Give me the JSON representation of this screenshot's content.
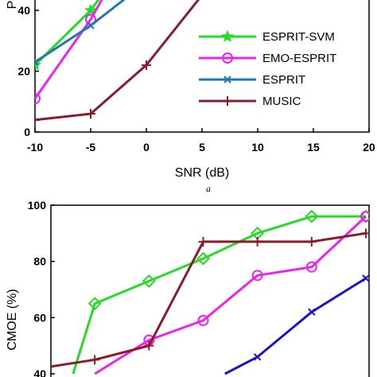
{
  "chart_data": [
    {
      "type": "line",
      "panel_label": "a",
      "xlabel": "SNR (dB)",
      "ylabel": "P",
      "xlim": [
        -10,
        20
      ],
      "ylim": [
        0,
        50
      ],
      "x_ticks": [
        "-10",
        "-5",
        "0",
        "5",
        "10",
        "15",
        "20"
      ],
      "y_ticks": [
        "0",
        "20",
        "40"
      ],
      "legend_position": "bottom-right",
      "series": [
        {
          "name": "ESPRIT-SVM",
          "color": "#22dd22",
          "marker": "star",
          "x": [
            -10,
            -5,
            -3
          ],
          "y": [
            22,
            40,
            50
          ]
        },
        {
          "name": "EMO-ESPRIT",
          "color": "#ee22ee",
          "marker": "circle",
          "x": [
            -10,
            -5,
            -3
          ],
          "y": [
            11,
            37,
            50
          ]
        },
        {
          "name": "ESPRIT",
          "color": "#1f77b4",
          "marker": "x",
          "x": [
            -10,
            -5,
            -1.5
          ],
          "y": [
            23,
            35,
            45
          ]
        },
        {
          "name": "MUSIC",
          "color": "#8b1a2b",
          "marker": "plus",
          "x": [
            -10,
            -5,
            0,
            5
          ],
          "y": [
            4,
            6,
            22,
            45
          ]
        }
      ]
    },
    {
      "type": "line",
      "ylabel": "CMOE (%)",
      "xlim": [
        -10,
        20
      ],
      "ylim": [
        40,
        100
      ],
      "y_ticks": [
        "40",
        "60",
        "80",
        "100"
      ],
      "series": [
        {
          "name": "ESPRIT-SVM",
          "color": "#22dd22",
          "marker": "diamond",
          "x": [
            -7,
            -5,
            0,
            5,
            10,
            15,
            20
          ],
          "y": [
            40,
            65,
            73,
            81,
            90,
            96,
            96
          ]
        },
        {
          "name": "EMO-ESPRIT",
          "color": "#ee22ee",
          "marker": "circle",
          "x": [
            -5,
            0,
            5,
            10,
            15,
            20
          ],
          "y": [
            40,
            52,
            59,
            75,
            78,
            96
          ]
        },
        {
          "name": "ESPRIT",
          "color": "#1515cc",
          "marker": "x",
          "x": [
            7,
            10,
            15,
            20
          ],
          "y": [
            40,
            46,
            62,
            74
          ]
        },
        {
          "name": "MUSIC",
          "color": "#8b1a2b",
          "marker": "plus",
          "x": [
            -10,
            -5,
            0,
            5,
            10,
            15,
            20
          ],
          "y": [
            42,
            45,
            50,
            87,
            87,
            87,
            90
          ]
        }
      ]
    }
  ]
}
